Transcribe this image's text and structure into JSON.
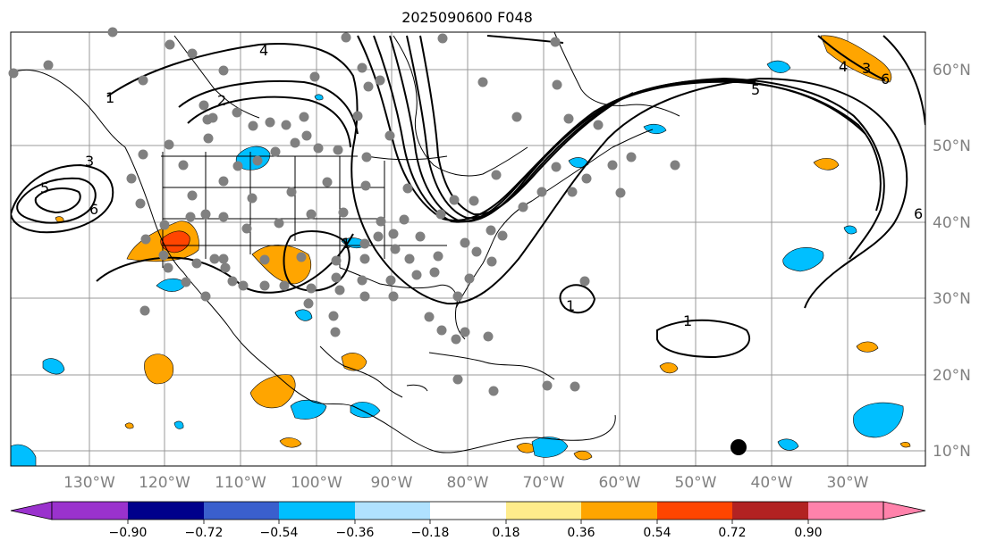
{
  "title": "2025090600 F048",
  "lon_labels": [
    "130°W",
    "120°W",
    "110°W",
    "100°W",
    "90°W",
    "80°W",
    "70°W",
    "60°W",
    "50°W",
    "40°W",
    "30°W"
  ],
  "lat_labels": [
    "60°N",
    "50°N",
    "40°N",
    "30°N",
    "20°N",
    "10°N"
  ],
  "contour_labels": [
    "4",
    "1",
    "2",
    "3",
    "5",
    "6",
    "1",
    "5",
    "4",
    "1",
    "1",
    "6",
    "3",
    "6"
  ],
  "colorbar": {
    "ticks": [
      "−0.90",
      "−0.72",
      "−0.54",
      "−0.36",
      "−0.18",
      "0.18",
      "0.36",
      "0.54",
      "0.72",
      "0.90"
    ],
    "colors": [
      "#9a32cd",
      "#00008b",
      "#3a5fcd",
      "#00bfff",
      "#b0e2ff",
      "#ffffff",
      "#ffec8b",
      "#ffa500",
      "#ff4500",
      "#b22222",
      "#ff82ab"
    ]
  },
  "colors": {
    "grid": "#999999",
    "coast": "#000000",
    "station": "#808080",
    "positive_fill": "#ffa500",
    "positive_strong": "#ff4500",
    "negative_fill": "#00bfff",
    "contour": "#000000",
    "axis_text": "#808080"
  }
}
